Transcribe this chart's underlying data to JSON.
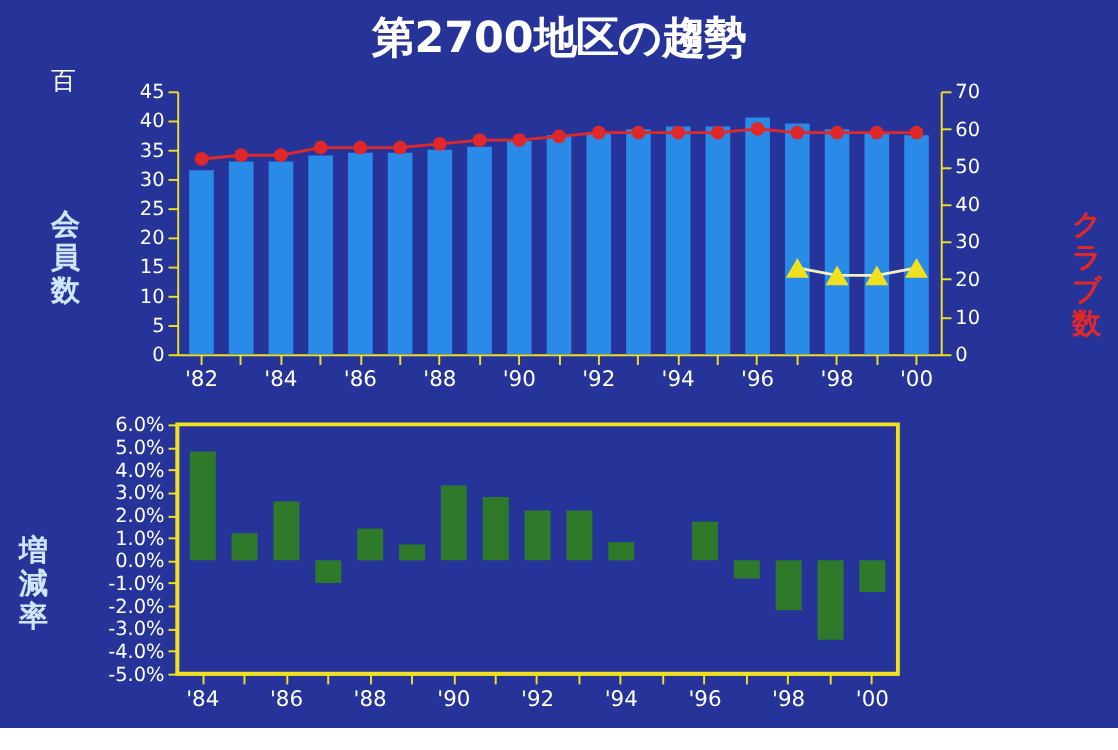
{
  "chart_data": [
    {
      "type": "bar",
      "title": "第2700地区の趨勢",
      "ylabel": "会員数",
      "y2label": "クラブ数",
      "annotations": [
        "百"
      ],
      "categories": [
        "'82",
        null,
        "'84",
        null,
        "'86",
        null,
        "'88",
        null,
        "'90",
        null,
        "'92",
        null,
        "'94",
        null,
        "'96",
        null,
        "'98",
        null,
        "'00"
      ],
      "series": [
        {
          "type": "bar",
          "color": "#2a8ae8",
          "values": [
            31.5,
            33,
            33,
            34,
            34.5,
            34.5,
            35,
            35.5,
            36.5,
            37.5,
            38,
            38.5,
            39,
            39,
            40.5,
            39.5,
            38.5,
            38,
            37.5
          ]
        },
        {
          "type": "line",
          "axis": "y2",
          "color": "#e02828",
          "marker": "circle",
          "values": [
            52,
            53,
            53,
            55,
            55,
            55,
            56,
            57,
            57,
            58,
            59,
            59,
            59,
            59,
            60,
            59,
            59,
            59,
            59
          ]
        },
        {
          "type": "line",
          "axis": "y2",
          "color": "#f0e020",
          "marker": "triangle",
          "values": [
            null,
            null,
            null,
            null,
            null,
            null,
            null,
            null,
            null,
            null,
            null,
            null,
            null,
            null,
            null,
            23,
            21,
            21,
            23
          ]
        }
      ],
      "ylim": [
        0,
        45
      ],
      "yticks": [
        0,
        5,
        10,
        15,
        20,
        25,
        30,
        35,
        40,
        45
      ],
      "y2lim": [
        0,
        70
      ],
      "y2ticks": [
        0,
        10,
        20,
        30,
        40,
        50,
        60,
        70
      ]
    },
    {
      "type": "bar",
      "ylabel": "増減率",
      "categories": [
        "'84",
        null,
        "'86",
        null,
        "'88",
        null,
        "'90",
        null,
        "'92",
        null,
        "'94",
        null,
        "'96",
        null,
        "'98",
        null,
        "'00"
      ],
      "values": [
        4.8,
        1.2,
        2.6,
        -1.0,
        1.4,
        0.7,
        3.3,
        2.8,
        2.2,
        2.2,
        0.8,
        0,
        1.7,
        -0.8,
        -2.2,
        -3.5,
        -1.4
      ],
      "color": "#2f7a2a",
      "ylim": [
        -5,
        6
      ],
      "yticks": [
        {
          "value": 6,
          "label": "6.0%"
        },
        {
          "value": 5,
          "label": "5.0%"
        },
        {
          "value": 4,
          "label": "4.0%"
        },
        {
          "value": 3,
          "label": "3.0%"
        },
        {
          "value": 2,
          "label": "2.0%"
        },
        {
          "value": 1,
          "label": "1.0%"
        },
        {
          "value": 0,
          "label": "0.0%"
        },
        {
          "value": -1,
          "label": "-1.0%"
        },
        {
          "value": -2,
          "label": "-2.0%"
        },
        {
          "value": -3,
          "label": "-3.0%"
        },
        {
          "value": -4,
          "label": "-4.0%"
        },
        {
          "value": -5,
          "label": "-5.0%"
        }
      ]
    }
  ]
}
